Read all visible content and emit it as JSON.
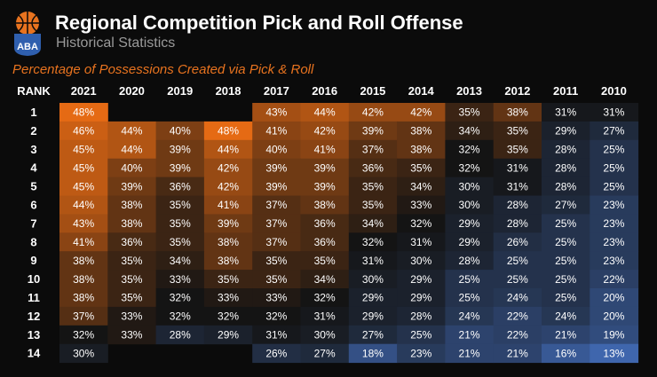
{
  "header": {
    "logo_text": "ABA",
    "title": "Regional Competition Pick and Roll Offense",
    "subtitle": "Historical Statistics"
  },
  "colors": {
    "background": "#0b0b0b",
    "high": "#e56a14",
    "mid": "#141414",
    "low": "#3f66ad",
    "accent": "#e8731f"
  },
  "chart_data": {
    "type": "heatmap",
    "title": "Percentage of Possessions Created via Pick & Roll",
    "row_header": "RANK",
    "columns": [
      "2021",
      "2020",
      "2019",
      "2018",
      "2017",
      "2016",
      "2015",
      "2014",
      "2013",
      "2012",
      "2011",
      "2010"
    ],
    "rows": [
      "1",
      "2",
      "3",
      "4",
      "5",
      "6",
      "7",
      "8",
      "9",
      "10",
      "11",
      "12",
      "13",
      "14"
    ],
    "values": [
      [
        48,
        null,
        null,
        null,
        43,
        44,
        42,
        42,
        35,
        38,
        31,
        31
      ],
      [
        46,
        44,
        40,
        48,
        41,
        42,
        39,
        38,
        34,
        35,
        29,
        27
      ],
      [
        45,
        44,
        39,
        44,
        40,
        41,
        37,
        38,
        32,
        35,
        28,
        25
      ],
      [
        45,
        40,
        39,
        42,
        39,
        39,
        36,
        35,
        32,
        31,
        28,
        25
      ],
      [
        45,
        39,
        36,
        42,
        39,
        39,
        35,
        34,
        30,
        31,
        28,
        25
      ],
      [
        44,
        38,
        35,
        41,
        37,
        38,
        35,
        33,
        30,
        28,
        27,
        23
      ],
      [
        43,
        38,
        35,
        39,
        37,
        36,
        34,
        32,
        29,
        28,
        25,
        23
      ],
      [
        41,
        36,
        35,
        38,
        37,
        36,
        32,
        31,
        29,
        26,
        25,
        23
      ],
      [
        38,
        35,
        34,
        38,
        35,
        35,
        31,
        30,
        28,
        25,
        25,
        23
      ],
      [
        38,
        35,
        33,
        35,
        35,
        34,
        30,
        29,
        25,
        25,
        25,
        22
      ],
      [
        38,
        35,
        32,
        33,
        33,
        32,
        29,
        29,
        25,
        24,
        25,
        20
      ],
      [
        37,
        33,
        32,
        32,
        32,
        31,
        29,
        28,
        24,
        22,
        24,
        20
      ],
      [
        32,
        33,
        28,
        29,
        31,
        30,
        27,
        25,
        21,
        22,
        21,
        19
      ],
      [
        30,
        null,
        null,
        null,
        26,
        27,
        18,
        23,
        21,
        21,
        16,
        13
      ]
    ],
    "value_suffix": "%",
    "color_scale": {
      "min": 13,
      "mid": 32,
      "max": 48
    }
  }
}
